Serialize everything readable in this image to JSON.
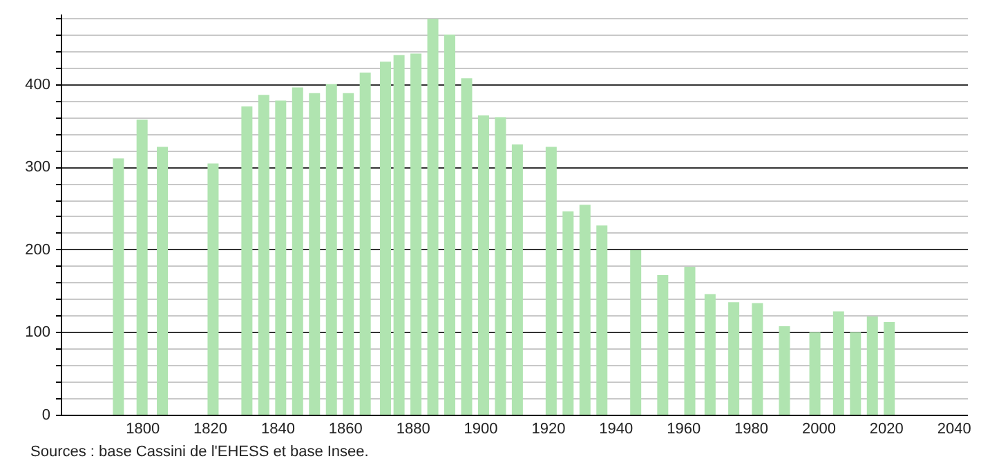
{
  "chart_data": {
    "type": "bar",
    "annotations": [
      "Sources : base Cassini de l'EHESS et base Insee."
    ],
    "x": [
      1793,
      1800,
      1806,
      1821,
      1831,
      1836,
      1841,
      1846,
      1851,
      1856,
      1861,
      1866,
      1872,
      1876,
      1881,
      1886,
      1891,
      1896,
      1901,
      1906,
      1911,
      1921,
      1926,
      1931,
      1936,
      1946,
      1954,
      1962,
      1968,
      1975,
      1982,
      1990,
      1999,
      2006,
      2011,
      2016,
      2021
    ],
    "values": [
      310,
      357,
      324,
      304,
      373,
      387,
      380,
      396,
      389,
      400,
      389,
      414,
      427,
      435,
      437,
      479,
      460,
      407,
      362,
      360,
      327,
      324,
      246,
      254,
      229,
      199,
      169,
      179,
      146,
      136,
      135,
      107,
      100,
      125,
      100,
      119,
      112
    ],
    "color": "#b0e4b0",
    "xlim": [
      1778,
      2042
    ],
    "xticks": [
      1800,
      1820,
      1840,
      1860,
      1880,
      1900,
      1920,
      1940,
      1960,
      1980,
      2000,
      2020,
      2040
    ],
    "ylim": [
      0,
      485
    ],
    "yticks": [
      0,
      {
        "value": 20,
        "label": null
      },
      {
        "value": 40,
        "label": null
      },
      {
        "value": 60,
        "label": null
      },
      {
        "value": 80,
        "label": null
      },
      100,
      {
        "value": 120,
        "label": null
      },
      {
        "value": 140,
        "label": null
      },
      {
        "value": 160,
        "label": null
      },
      {
        "value": 180,
        "label": null
      },
      200,
      {
        "value": 220,
        "label": null
      },
      {
        "value": 240,
        "label": null
      },
      {
        "value": 260,
        "label": null
      },
      {
        "value": 280,
        "label": null
      },
      300,
      {
        "value": 320,
        "label": null
      },
      {
        "value": 340,
        "label": null
      },
      {
        "value": 360,
        "label": null
      },
      {
        "value": 380,
        "label": null
      },
      400,
      {
        "value": 420,
        "label": null
      },
      {
        "value": 440,
        "label": null
      },
      {
        "value": 460,
        "label": null
      },
      {
        "value": 480,
        "label": null
      }
    ],
    "grid": "y"
  }
}
